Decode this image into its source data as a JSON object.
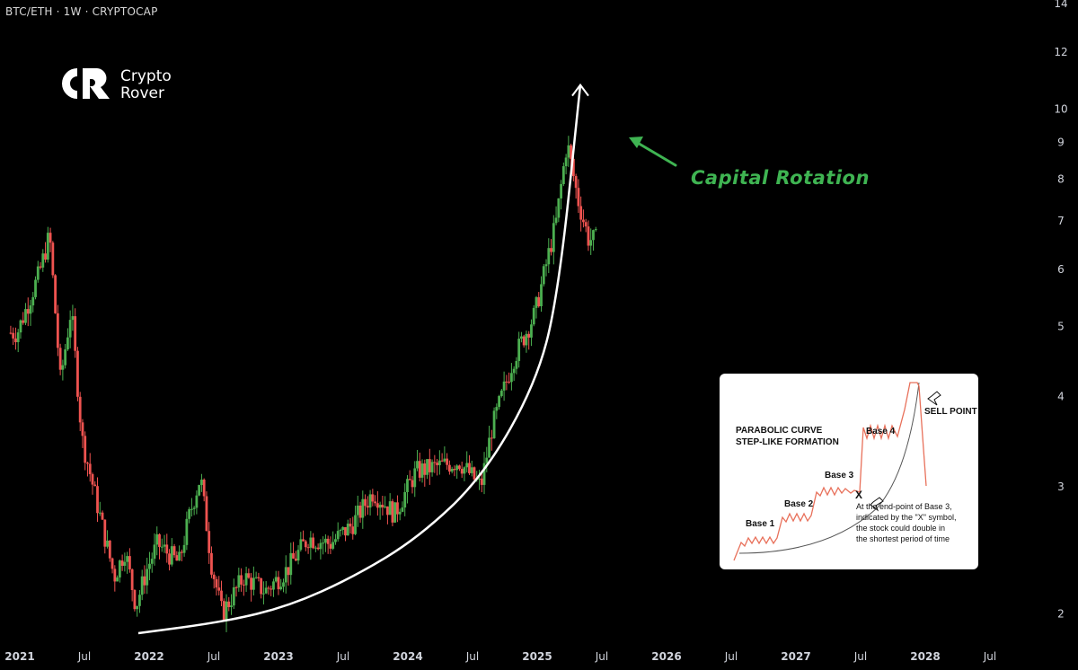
{
  "header": {
    "symbol": "BTC/ETH · 1W · CRYPTOCAP"
  },
  "logo": {
    "line1": "Crypto",
    "line2": "Rover"
  },
  "annotation": {
    "text": "Capital Rotation",
    "color": "#3fb452"
  },
  "inset": {
    "title_line1": "PARABOLIC CURVE",
    "title_line2": "STEP-LIKE FORMATION",
    "bases": [
      "Base 1",
      "Base 2",
      "Base 3",
      "Base 4"
    ],
    "sell_point": "SELL POINT",
    "x_marker": "X",
    "note_lines": [
      "At the end-point of Base 3,",
      "indicated by the \"X\" symbol,",
      "the stock could double in",
      "the shortest period of time"
    ]
  },
  "chart_data": {
    "type": "line",
    "scale": "log",
    "title": "",
    "xlabel": "",
    "ylabel": "",
    "x_ticks": [
      "2021",
      "Jul",
      "2022",
      "Jul",
      "2023",
      "Jul",
      "2024",
      "Jul",
      "2025",
      "Jul",
      "2026",
      "Jul",
      "2027",
      "Jul",
      "2028",
      "Jul"
    ],
    "y_ticks": [
      "14",
      "12",
      "10",
      "9",
      "8",
      "7",
      "6",
      "5",
      "4",
      "3",
      "2"
    ],
    "ylim": [
      1.75,
      14
    ],
    "xlim": [
      "2020-11",
      "2028-10"
    ],
    "colors": {
      "up": "#4caf50",
      "down": "#ef5350",
      "curve": "#ffffff"
    },
    "series": [
      {
        "values": [
          [
            "2021-01",
            4.9
          ],
          [
            "2021-03",
            5.9
          ],
          [
            "2021-04",
            6.7
          ],
          [
            "2021-05",
            4.2
          ],
          [
            "2021-06",
            5.3
          ],
          [
            "2021-07",
            3.5
          ],
          [
            "2021-09",
            2.6
          ],
          [
            "2021-10",
            2.25
          ],
          [
            "2021-11",
            2.45
          ],
          [
            "2021-12",
            2.05
          ],
          [
            "2022-01",
            2.3
          ],
          [
            "2022-02",
            2.5
          ],
          [
            "2022-04",
            2.35
          ],
          [
            "2022-05",
            2.75
          ],
          [
            "2022-06",
            3.1
          ],
          [
            "2022-07",
            2.35
          ],
          [
            "2022-08",
            2.0
          ],
          [
            "2022-10",
            2.25
          ],
          [
            "2022-12",
            2.15
          ],
          [
            "2023-02",
            2.3
          ],
          [
            "2023-04",
            2.55
          ],
          [
            "2023-06",
            2.5
          ],
          [
            "2023-08",
            2.65
          ],
          [
            "2023-10",
            2.95
          ],
          [
            "2023-12",
            2.75
          ],
          [
            "2024-02",
            3.15
          ],
          [
            "2024-04",
            3.2
          ],
          [
            "2024-06",
            3.25
          ],
          [
            "2024-08",
            3.0
          ],
          [
            "2024-09",
            3.6
          ],
          [
            "2024-11",
            4.5
          ],
          [
            "2025-01",
            5.2
          ],
          [
            "2025-03",
            7.0
          ],
          [
            "2025-04",
            9.0
          ],
          [
            "2025-05",
            7.5
          ],
          [
            "2025-06",
            6.6
          ]
        ]
      }
    ],
    "parabolic_curve": [
      [
        "2021-12",
        1.88
      ],
      [
        "2022-08",
        1.95
      ],
      [
        "2023-02",
        2.05
      ],
      [
        "2023-08",
        2.25
      ],
      [
        "2024-02",
        2.55
      ],
      [
        "2024-08",
        3.1
      ],
      [
        "2025-01",
        4.2
      ],
      [
        "2025-03",
        5.6
      ],
      [
        "2025-05",
        10.8
      ]
    ]
  }
}
